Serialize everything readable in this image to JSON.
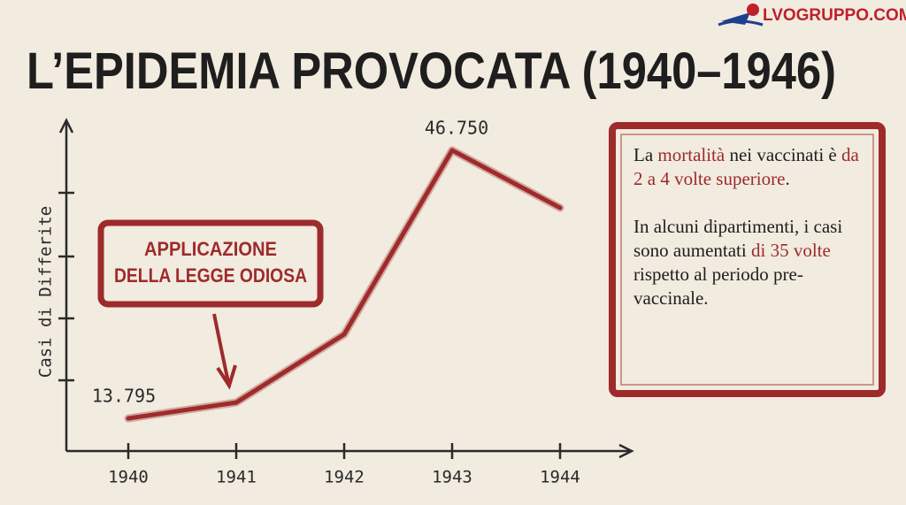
{
  "logo": "LVOGRUPPO.COM",
  "chart_data": {
    "type": "line",
    "title": "L’EPIDEMIA PROVOCATA (1940–1946)",
    "y_label": "Casi di Differite",
    "categories": [
      "1940",
      "1941",
      "1942",
      "1943",
      "1944"
    ],
    "values": [
      13795,
      15750,
      24130,
      46750,
      39680
    ],
    "value_labels": [
      "13.795",
      null,
      null,
      "46.750",
      null
    ],
    "color": "#9e2b2b",
    "ylim": [
      10000,
      50000
    ],
    "annotation": [
      "APPLICAZIONE",
      "DELLA LEGGE ODIOSA"
    ]
  },
  "note": {
    "paragraphs": [
      [
        "La ",
        "mortalità",
        " nei vaccinati è ",
        "da 2 a 4 volte superiore",
        "."
      ],
      [
        "In alcuni dipartimenti, i casi sono aumentati ",
        "di 35 volte",
        " rispetto al periodo pre-vaccinale."
      ]
    ]
  }
}
